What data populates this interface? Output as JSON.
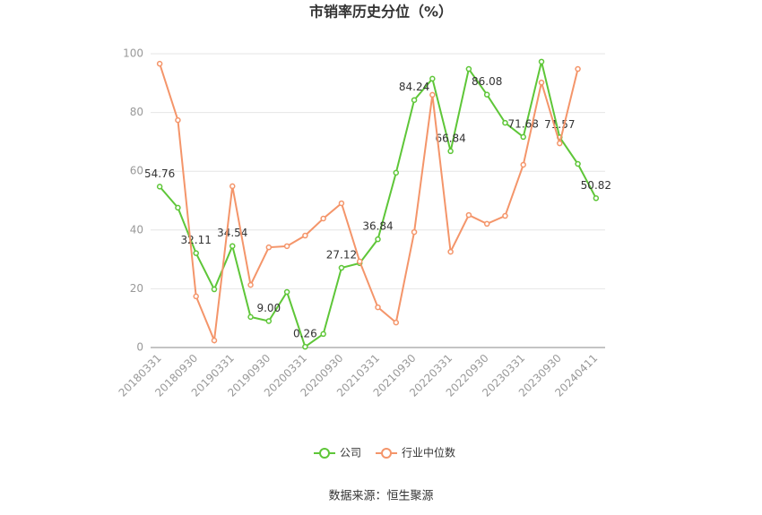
{
  "chart_data": {
    "type": "line",
    "title": "市销率历史分位（%）",
    "source": "数据来源：恒生聚源",
    "categories": [
      "20180331",
      null,
      "20180930",
      null,
      "20190331",
      null,
      "20190930",
      null,
      "20200331",
      null,
      "20200930",
      null,
      "20210331",
      null,
      "20210930",
      null,
      "20220331",
      null,
      "20220930",
      null,
      "20230331",
      null,
      "20230930",
      null,
      "20240411"
    ],
    "series": [
      {
        "name": "公司",
        "color": "#5ec638",
        "values": [
          54.76,
          47.6,
          32.11,
          19.8,
          34.54,
          10.4,
          9.0,
          18.9,
          0.26,
          4.6,
          27.12,
          28.7,
          36.84,
          59.5,
          84.24,
          91.5,
          66.84,
          94.8,
          86.08,
          76.5,
          71.68,
          97.3,
          71.57,
          62.5,
          50.82
        ],
        "value_labels": [
          "54.76",
          null,
          "32.11",
          null,
          "34.54",
          null,
          "9.00",
          null,
          "0.26",
          null,
          "27.12",
          null,
          "36.84",
          null,
          "84.24",
          null,
          "66.84",
          null,
          "86.08",
          null,
          "71.68",
          null,
          "71.57",
          null,
          "50.82"
        ]
      },
      {
        "name": "行业中位数",
        "color": "#f4956a",
        "values": [
          96.6,
          77.4,
          17.4,
          2.4,
          54.9,
          21.3,
          34.1,
          34.5,
          38.1,
          43.9,
          49.1,
          29.3,
          13.7,
          8.5,
          39.3,
          86.0,
          32.6,
          45.1,
          42.1,
          44.8,
          62.2,
          90.2,
          69.5,
          94.8,
          null
        ]
      }
    ],
    "ylim": [
      0,
      100
    ],
    "yticks": [
      0,
      20,
      40,
      60,
      80,
      100
    ],
    "grid": true
  }
}
